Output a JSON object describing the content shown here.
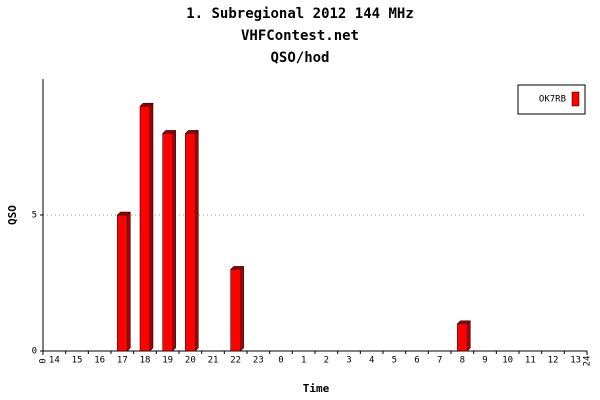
{
  "chart_data": {
    "type": "bar",
    "title": "1. Subregional 2012 144 MHz",
    "subtitle": "VHFContest.net",
    "unit_title": "QSO/hod",
    "x_label": "Time",
    "y_label": "QSO",
    "categories": [
      "14",
      "15",
      "16",
      "17",
      "18",
      "19",
      "20",
      "21",
      "22",
      "23",
      "0",
      "1",
      "2",
      "3",
      "4",
      "5",
      "6",
      "7",
      "8",
      "9",
      "10",
      "11",
      "12",
      "13"
    ],
    "series": [
      {
        "name": "OK7RB",
        "color": "#ff0000",
        "values": [
          0,
          0,
          0,
          5,
          9,
          8,
          8,
          0,
          3,
          0,
          0,
          0,
          0,
          0,
          0,
          0,
          0,
          0,
          1,
          0,
          0,
          0,
          0,
          0
        ]
      }
    ],
    "xlim": [
      0,
      24
    ],
    "xticks": [
      0,
      24
    ],
    "ylim": [
      0,
      10
    ],
    "yticks": [
      0,
      5
    ],
    "grid": true,
    "legend": "top-right"
  }
}
